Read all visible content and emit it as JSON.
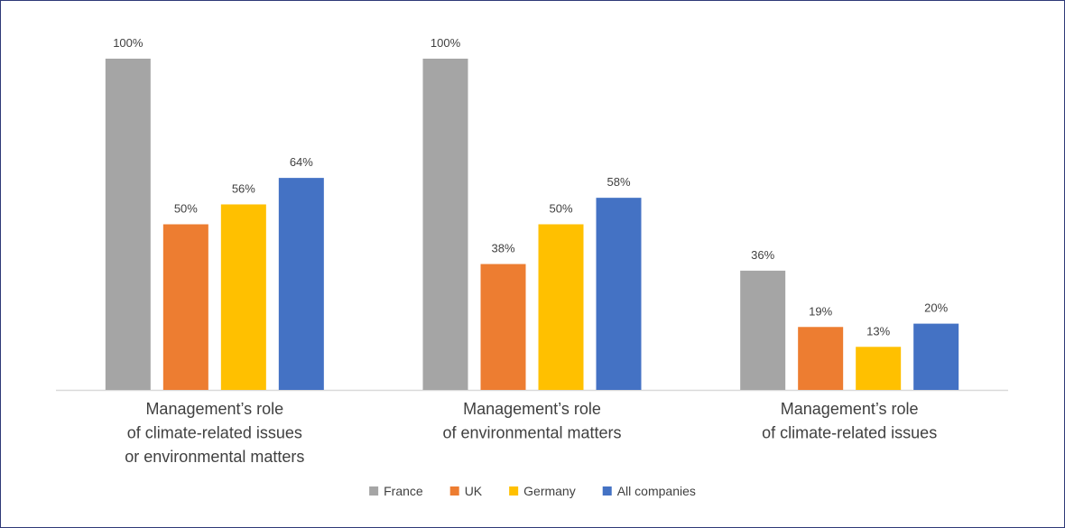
{
  "chart_data": {
    "type": "bar",
    "categories": [
      [
        "Management’s role",
        "of climate-related issues",
        "or environmental matters"
      ],
      [
        "Management’s role",
        "of environmental matters"
      ],
      [
        "Management’s role",
        "of climate-related issues"
      ]
    ],
    "series": [
      {
        "name": "France",
        "color": "#a5a5a5",
        "values": [
          100,
          100,
          36
        ],
        "value_labels": [
          "100%",
          "100%",
          "36%"
        ]
      },
      {
        "name": "UK",
        "color": "#ed7d31",
        "values": [
          50,
          38,
          19
        ],
        "value_labels": [
          "50%",
          "38%",
          "19%"
        ]
      },
      {
        "name": "Germany",
        "color": "#ffc000",
        "values": [
          56,
          50,
          13
        ],
        "value_labels": [
          "56%",
          "50%",
          "13%"
        ]
      },
      {
        "name": "All companies",
        "color": "#4472c4",
        "values": [
          64,
          58,
          20
        ],
        "value_labels": [
          "64%",
          "58%",
          "20%"
        ]
      }
    ],
    "legend": "bottom"
  }
}
